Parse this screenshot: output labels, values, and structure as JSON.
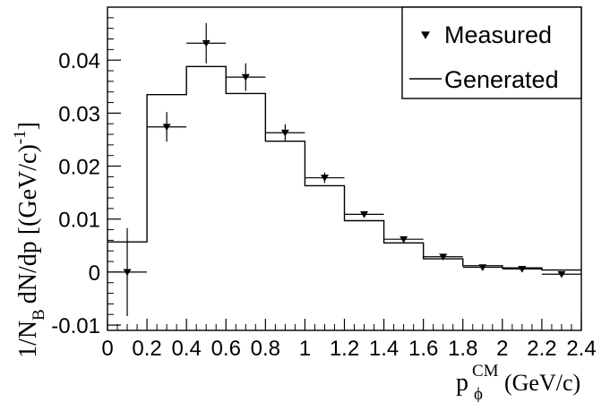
{
  "chart_data": {
    "type": "histogram",
    "xlabel": {
      "main": "p",
      "superscript": "CM",
      "subscript": "ϕ",
      "unit": "(GeV/c)"
    },
    "ylabel": {
      "prefix": "1/N",
      "subscript": "B",
      "main": "dN/dp  [(GeV/c)",
      "superscript": "-1",
      "suffix": "]"
    },
    "xlim": [
      0,
      2.4
    ],
    "ylim": [
      -0.011,
      0.05
    ],
    "xticks": [
      0,
      0.2,
      0.4,
      0.6,
      0.8,
      1,
      1.2,
      1.4,
      1.6,
      1.8,
      2,
      2.2,
      2.4
    ],
    "xtick_labels": [
      "0",
      "0.2",
      "0.4",
      "0.6",
      "0.8",
      "1",
      "1.2",
      "1.4",
      "1.6",
      "1.8",
      "2",
      "2.2",
      "2.4"
    ],
    "yticks": [
      -0.01,
      0,
      0.01,
      0.02,
      0.03,
      0.04
    ],
    "ytick_labels": [
      "-0.01",
      "0",
      "0.01",
      "0.02",
      "0.03",
      "0.04"
    ],
    "legend": {
      "position": "top-right",
      "entries": [
        {
          "label": "Measured",
          "marker": "triangle-down"
        },
        {
          "label": "Generated",
          "marker": "line"
        }
      ]
    },
    "bin_edges": [
      0,
      0.2,
      0.4,
      0.6,
      0.8,
      1.0,
      1.2,
      1.4,
      1.6,
      1.8,
      2.0,
      2.2,
      2.4
    ],
    "series": [
      {
        "name": "Generated",
        "style": "step",
        "values": [
          0.0057,
          0.0335,
          0.0388,
          0.0337,
          0.0247,
          0.0163,
          0.0097,
          0.0055,
          0.0025,
          0.0012,
          0.0008,
          0.0004
        ]
      },
      {
        "name": "Measured",
        "style": "points",
        "x": [
          0.1,
          0.3,
          0.5,
          0.7,
          0.9,
          1.1,
          1.3,
          1.5,
          1.7,
          1.9,
          2.1,
          2.3
        ],
        "xerr": 0.1,
        "y": [
          0.0,
          0.0274,
          0.0432,
          0.0368,
          0.0263,
          0.0178,
          0.0109,
          0.0062,
          0.0029,
          0.0009,
          0.0006,
          -0.0004
        ],
        "yerr": [
          0.0083,
          0.0028,
          0.0038,
          0.0026,
          0.0016,
          0.001,
          0.0006,
          0.0004,
          0.0003,
          0.0002,
          0.0002,
          0.0002
        ]
      }
    ]
  }
}
